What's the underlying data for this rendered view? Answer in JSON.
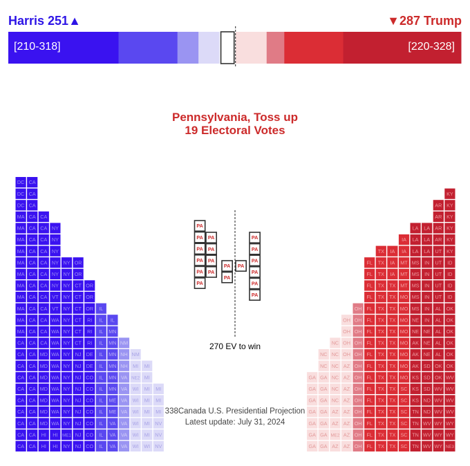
{
  "header": {
    "harris_label": "Harris 251▲",
    "trump_label": "▼287 Trump",
    "harris_range": "[210-318]",
    "trump_range": "[220-328]"
  },
  "highlight": {
    "state_line": "Pennsylvania, Toss up",
    "votes_line": "19 Electoral Votes"
  },
  "win_label": "270 EV to win",
  "credit": {
    "line1": "338Canada U.S. Presidential Projection",
    "line2": "Latest update: July 31, 2024"
  },
  "chart_data": {
    "type": "electoral-vote-grid",
    "total_electoral_votes": 538,
    "threshold": 270,
    "highlight_state": "PA",
    "colors": {
      "safe_d": "#3a12f0",
      "likely_d": "#5a48f0",
      "lean_d": "#9a94f2",
      "tilt_d": "#dcdaf8",
      "tilt_r": "#f9dede",
      "lean_r": "#e07b86",
      "likely_r": "#db2d35",
      "safe_r": "#c22030"
    },
    "bar_segments": [
      {
        "category": "safe_d",
        "votes": 131
      },
      {
        "category": "likely_d",
        "votes": 70
      },
      {
        "category": "lean_d",
        "votes": 25
      },
      {
        "category": "tilt_d",
        "votes": 25
      },
      {
        "category": "toss_up",
        "votes": 19
      },
      {
        "category": "tilt_r",
        "votes": 37
      },
      {
        "category": "lean_r",
        "votes": 21
      },
      {
        "category": "likely_r",
        "votes": 70
      },
      {
        "category": "safe_r",
        "votes": 140
      }
    ],
    "left_columns": [
      {
        "category": "safe_d",
        "cells": [
          "DC",
          "DC",
          "DC",
          "MA",
          "MA",
          "MA",
          "MA",
          "MA",
          "MA",
          "MA",
          "MA",
          "MA",
          "MA",
          "MA",
          "CA",
          "CA",
          "CA",
          "CA",
          "CA",
          "CA",
          "CA",
          "CA",
          "CA",
          "CA"
        ]
      },
      {
        "category": "safe_d",
        "cells": [
          "CA",
          "CA",
          "CA",
          "CA",
          "CA",
          "CA",
          "CA",
          "CA",
          "CA",
          "CA",
          "CA",
          "CA",
          "CA",
          "CA",
          "CA",
          "CA",
          "CA",
          "CA",
          "CA",
          "CA",
          "CA",
          "CA",
          "CA",
          "CA"
        ]
      },
      {
        "category": "safe_d",
        "cells": [
          "CA",
          "CA",
          "CA",
          "CA",
          "CA",
          "CA",
          "CA",
          "CA",
          "CA",
          "CA",
          "CA",
          "CA",
          "MD",
          "MD",
          "MD",
          "MD",
          "MD",
          "MD",
          "MD",
          "HI",
          "HI"
        ]
      },
      {
        "category": "safe_d",
        "cells": [
          "NY",
          "NY",
          "NY",
          "NY",
          "NY",
          "NY",
          "VT",
          "VT",
          "WA",
          "WA",
          "WA",
          "WA",
          "WA",
          "WA",
          "WA",
          "WA",
          "WA",
          "WA",
          "HI",
          "HI"
        ]
      },
      {
        "category": "safe_d",
        "cells": [
          "NY",
          "NY",
          "NY",
          "NY",
          "NY",
          "NY",
          "NY",
          "NY",
          "NY",
          "NY",
          "NY",
          "NY",
          "NY",
          "NY",
          "NY",
          "ME1",
          "NY"
        ]
      },
      {
        "category": "safe_d",
        "cells": [
          "OR",
          "OR",
          "CT",
          "CT",
          "CT",
          "CT",
          "CT",
          "CT",
          "NJ",
          "NJ",
          "NJ",
          "NJ",
          "NJ",
          "NJ",
          "NJ",
          "NJ",
          "NJ"
        ]
      },
      {
        "category": "safe_d",
        "cells": [
          "OR",
          "OR",
          "OR",
          "RI",
          "RI",
          "RI",
          "DE",
          "DE",
          "CO",
          "CO",
          "CO",
          "CO",
          "CO",
          "CO",
          "CO"
        ]
      },
      {
        "category": "likely_d",
        "cells": [
          "IL",
          "IL",
          "IL",
          "IL",
          "IL",
          "IL",
          "IL",
          "IL",
          "IL",
          "IL",
          "IL",
          "IL",
          "IL"
        ]
      },
      {
        "category": "likely_d",
        "cells": [
          "IL",
          "MN",
          "MN",
          "MN",
          "MN",
          "MN",
          "MN",
          "ME",
          "ME",
          "VA",
          "VA",
          "VA"
        ]
      },
      {
        "category": "lean_d",
        "cells": [
          "NM",
          "NH",
          "NH",
          "VA",
          "VA",
          "VA",
          "VA",
          "VA",
          "VA",
          "VA"
        ]
      },
      {
        "category": "tilt_d",
        "cells": [
          "NM",
          "MI",
          "NE2",
          "WI",
          "WI",
          "WI",
          "WI",
          "WI",
          "WI"
        ]
      },
      {
        "category": "tilt_d",
        "cells": [
          "MI",
          "MI",
          "MI",
          "MI",
          "MI",
          "MI",
          "MI",
          "WI"
        ]
      },
      {
        "category": "tilt_d",
        "cells": [
          "MI",
          "MI",
          "MI",
          "NV",
          "NV",
          "NV"
        ]
      }
    ],
    "right_columns": [
      {
        "category": "safe_r",
        "cells": [
          "KY",
          "KY",
          "KY",
          "KY",
          "KY",
          "KY",
          "ID",
          "ID",
          "ID",
          "ID",
          "OK",
          "OK",
          "OK",
          "OK",
          "OK",
          "OK",
          "WV",
          "WV",
          "WV",
          "WV",
          "WY",
          "WY",
          "NE3"
        ]
      },
      {
        "category": "safe_r",
        "cells": [
          "AR",
          "AR",
          "AR",
          "AR",
          "UT",
          "UT",
          "UT",
          "UT",
          "UT",
          "AL",
          "AL",
          "AL",
          "AL",
          "AL",
          "OK",
          "OK",
          "WV",
          "WV",
          "WV",
          "WY",
          "WY",
          "WY"
        ]
      },
      {
        "category": "safe_r",
        "cells": [
          "LA",
          "LA",
          "LA",
          "IN",
          "IN",
          "IN",
          "IN",
          "IN",
          "IN",
          "NE",
          "NE",
          "NE",
          "SD",
          "SD",
          "SD",
          "ND",
          "ND",
          "WV",
          "WV",
          "WV"
        ]
      },
      {
        "category": "safe_r",
        "cells": [
          "LA",
          "LA",
          "LA",
          "MS",
          "MS",
          "MS",
          "MS",
          "MS",
          "NE",
          "NE",
          "AK",
          "AK",
          "AK",
          "KS",
          "KS",
          "KS",
          "TN",
          "TN",
          "TN",
          "TN"
        ]
      },
      {
        "category": "likely_r",
        "cells": [
          "IA",
          "IA",
          "MT",
          "MT",
          "MT",
          "MO",
          "MO",
          "MO",
          "MO",
          "MO",
          "MO",
          "MO",
          "MO",
          "SC",
          "SC",
          "SC",
          "SC",
          "SC",
          "SC"
        ]
      },
      {
        "category": "likely_r",
        "cells": [
          "IA",
          "IA",
          "IA",
          "TX",
          "TX",
          "TX",
          "TX",
          "TX",
          "TX",
          "TX",
          "TX",
          "TX",
          "TX",
          "TX",
          "TX",
          "TX",
          "TX",
          "TX"
        ]
      },
      {
        "category": "likely_r",
        "cells": [
          "TX",
          "TX",
          "TX",
          "TX",
          "TX",
          "TX",
          "TX",
          "TX",
          "TX",
          "TX",
          "TX",
          "TX",
          "TX",
          "TX",
          "TX",
          "TX",
          "TX",
          "TX"
        ]
      },
      {
        "category": "likely_r",
        "cells": [
          "FL",
          "FL",
          "FL",
          "FL",
          "FL",
          "FL",
          "FL",
          "FL",
          "FL",
          "FL",
          "FL",
          "FL",
          "FL",
          "FL",
          "FL",
          "FL",
          "FL"
        ]
      },
      {
        "category": "lean_r",
        "cells": [
          "OH",
          "OH",
          "OH",
          "OH",
          "OH",
          "OH",
          "OH",
          "OH",
          "OH",
          "OH",
          "OH",
          "OH",
          "OH"
        ]
      },
      {
        "category": "tilt_r",
        "cells": [
          "OH",
          "OH",
          "OH",
          "OH",
          "AZ",
          "AZ",
          "AZ",
          "AZ",
          "AZ",
          "AZ",
          "AZ",
          "AZ"
        ]
      },
      {
        "category": "tilt_r",
        "cells": [
          "NC",
          "NC",
          "NC",
          "NC",
          "NC",
          "NC",
          "AZ",
          "AZ",
          "ME2",
          "AZ"
        ]
      },
      {
        "category": "tilt_r",
        "cells": [
          "NC",
          "NC",
          "GA",
          "GA",
          "GA",
          "GA",
          "GA",
          "GA",
          "GA"
        ]
      },
      {
        "category": "tilt_r",
        "cells": [
          "GA",
          "GA",
          "GA",
          "GA",
          "GA",
          "GA",
          "GA"
        ]
      }
    ],
    "center_columns": [
      {
        "cells": [
          "PA",
          "PA",
          "PA",
          "PA",
          "PA",
          "PA"
        ]
      },
      {
        "cells": [
          "PA",
          "PA",
          "PA",
          "PA"
        ]
      },
      {
        "cells": [
          "PA",
          "PA"
        ]
      },
      {
        "cells": [
          "PA"
        ]
      },
      {
        "cells": [
          "PA",
          "PA",
          "PA",
          "PA",
          "PA",
          "PA"
        ]
      }
    ]
  }
}
